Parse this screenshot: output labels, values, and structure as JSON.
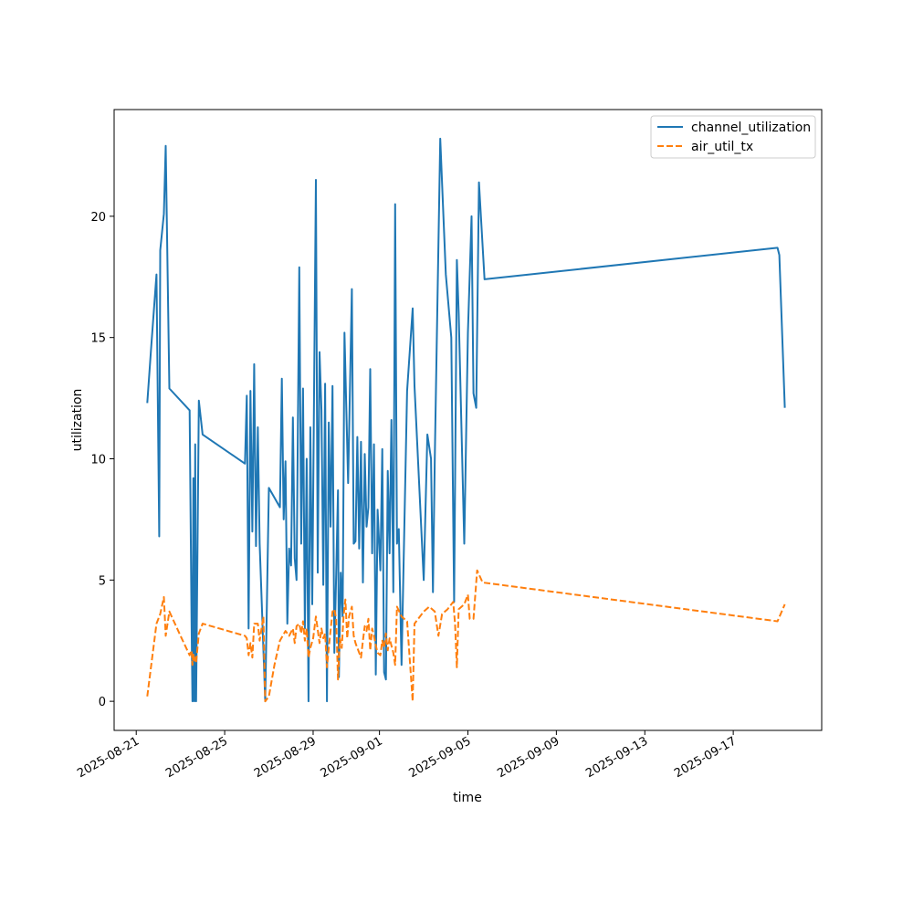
{
  "chart_data": {
    "type": "line",
    "xlabel": "time",
    "ylabel": "utilization",
    "x_axis_kind": "date",
    "xlim": [
      "2025-08-20",
      "2025-09-21"
    ],
    "ylim": [
      -1.2,
      24.4
    ],
    "x_ticks": [
      "2025-08-21",
      "2025-08-25",
      "2025-08-29",
      "2025-09-01",
      "2025-09-05",
      "2025-09-09",
      "2025-09-13",
      "2025-09-17"
    ],
    "y_ticks": [
      0,
      5,
      10,
      15,
      20
    ],
    "grid": false,
    "legend_position": "top-right",
    "series": [
      {
        "name": "channel_utilization",
        "color": "#1f77b4",
        "dash": "solid",
        "points": [
          [
            "2025-08-21T12:00",
            12.3
          ],
          [
            "2025-08-21T16:00",
            14.5
          ],
          [
            "2025-08-21T22:00",
            17.6
          ],
          [
            "2025-08-22T01:00",
            6.8
          ],
          [
            "2025-08-22T02:00",
            18.6
          ],
          [
            "2025-08-22T06:00",
            20.1
          ],
          [
            "2025-08-22T08:00",
            22.9
          ],
          [
            "2025-08-22T12:00",
            12.9
          ],
          [
            "2025-08-23T10:00",
            12.0
          ],
          [
            "2025-08-23T12:00",
            3.3
          ],
          [
            "2025-08-23T13:00",
            0.0
          ],
          [
            "2025-08-23T14:00",
            9.2
          ],
          [
            "2025-08-23T15:00",
            0.0
          ],
          [
            "2025-08-23T16:00",
            10.6
          ],
          [
            "2025-08-23T17:00",
            0.0
          ],
          [
            "2025-08-23T20:00",
            12.4
          ],
          [
            "2025-08-24T00:00",
            11.0
          ],
          [
            "2025-08-25T22:00",
            9.8
          ],
          [
            "2025-08-26T00:00",
            12.6
          ],
          [
            "2025-08-26T02:00",
            3.0
          ],
          [
            "2025-08-26T04:00",
            12.8
          ],
          [
            "2025-08-26T06:00",
            7.0
          ],
          [
            "2025-08-26T08:00",
            13.9
          ],
          [
            "2025-08-26T10:00",
            6.4
          ],
          [
            "2025-08-26T12:00",
            11.3
          ],
          [
            "2025-08-26T14:00",
            6.5
          ],
          [
            "2025-08-26T20:00",
            0.0
          ],
          [
            "2025-08-27T00:00",
            8.8
          ],
          [
            "2025-08-27T12:00",
            8.0
          ],
          [
            "2025-08-27T14:00",
            13.3
          ],
          [
            "2025-08-27T16:00",
            7.5
          ],
          [
            "2025-08-27T18:00",
            9.9
          ],
          [
            "2025-08-27T20:00",
            3.2
          ],
          [
            "2025-08-27T22:00",
            6.3
          ],
          [
            "2025-08-28T00:00",
            5.6
          ],
          [
            "2025-08-28T02:00",
            11.7
          ],
          [
            "2025-08-28T04:00",
            5.9
          ],
          [
            "2025-08-28T06:00",
            5.0
          ],
          [
            "2025-08-28T09:00",
            17.9
          ],
          [
            "2025-08-28T11:00",
            6.5
          ],
          [
            "2025-08-28T13:00",
            12.9
          ],
          [
            "2025-08-28T15:00",
            3.0
          ],
          [
            "2025-08-28T17:00",
            10.0
          ],
          [
            "2025-08-28T19:00",
            0.0
          ],
          [
            "2025-08-28T21:00",
            11.3
          ],
          [
            "2025-08-28T23:00",
            4.0
          ],
          [
            "2025-08-29T03:00",
            21.5
          ],
          [
            "2025-08-29T05:00",
            5.3
          ],
          [
            "2025-08-29T07:00",
            14.4
          ],
          [
            "2025-08-29T09:00",
            12.0
          ],
          [
            "2025-08-29T11:00",
            4.8
          ],
          [
            "2025-08-29T13:00",
            13.1
          ],
          [
            "2025-08-29T15:00",
            0.0
          ],
          [
            "2025-08-29T17:00",
            11.5
          ],
          [
            "2025-08-29T19:00",
            7.2
          ],
          [
            "2025-08-29T21:00",
            13.0
          ],
          [
            "2025-08-29T23:00",
            2.0
          ],
          [
            "2025-08-30T01:00",
            5.2
          ],
          [
            "2025-08-30T03:00",
            8.7
          ],
          [
            "2025-08-30T04:00",
            1.0
          ],
          [
            "2025-08-30T06:00",
            5.3
          ],
          [
            "2025-08-30T08:00",
            3.5
          ],
          [
            "2025-08-30T10:00",
            15.2
          ],
          [
            "2025-08-30T14:00",
            9.0
          ],
          [
            "2025-08-30T18:00",
            17.0
          ],
          [
            "2025-08-30T20:00",
            6.5
          ],
          [
            "2025-08-30T22:00",
            6.6
          ],
          [
            "2025-08-31T00:00",
            10.9
          ],
          [
            "2025-08-31T02:00",
            6.3
          ],
          [
            "2025-08-31T04:00",
            10.7
          ],
          [
            "2025-08-31T06:00",
            4.9
          ],
          [
            "2025-08-31T08:00",
            10.2
          ],
          [
            "2025-08-31T10:00",
            7.2
          ],
          [
            "2025-08-31T12:00",
            8.0
          ],
          [
            "2025-08-31T14:00",
            13.7
          ],
          [
            "2025-08-31T16:00",
            6.1
          ],
          [
            "2025-08-31T18:00",
            10.6
          ],
          [
            "2025-08-31T20:00",
            1.1
          ],
          [
            "2025-08-31T22:00",
            7.9
          ],
          [
            "2025-09-01T01:00",
            5.4
          ],
          [
            "2025-09-01T03:00",
            10.4
          ],
          [
            "2025-09-01T05:00",
            1.2
          ],
          [
            "2025-09-01T07:00",
            0.9
          ],
          [
            "2025-09-01T09:00",
            9.5
          ],
          [
            "2025-09-01T11:00",
            6.1
          ],
          [
            "2025-09-01T13:00",
            11.6
          ],
          [
            "2025-09-01T15:00",
            4.5
          ],
          [
            "2025-09-01T17:00",
            20.5
          ],
          [
            "2025-09-01T19:00",
            6.5
          ],
          [
            "2025-09-01T21:00",
            7.1
          ],
          [
            "2025-09-02T00:00",
            1.5
          ],
          [
            "2025-09-02T06:00",
            12.8
          ],
          [
            "2025-09-02T12:00",
            16.2
          ],
          [
            "2025-09-02T14:00",
            13.0
          ],
          [
            "2025-09-03T00:00",
            5.0
          ],
          [
            "2025-09-03T04:00",
            11.0
          ],
          [
            "2025-09-03T08:00",
            10.0
          ],
          [
            "2025-09-03T10:00",
            4.5
          ],
          [
            "2025-09-03T12:00",
            10.0
          ],
          [
            "2025-09-03T18:00",
            23.2
          ],
          [
            "2025-09-04T00:00",
            17.6
          ],
          [
            "2025-09-04T06:00",
            15.0
          ],
          [
            "2025-09-04T09:00",
            4.1
          ],
          [
            "2025-09-04T12:00",
            18.2
          ],
          [
            "2025-09-04T14:00",
            16.0
          ],
          [
            "2025-09-04T20:00",
            6.5
          ],
          [
            "2025-09-05T00:00",
            15.2
          ],
          [
            "2025-09-05T04:00",
            20.0
          ],
          [
            "2025-09-05T06:00",
            12.7
          ],
          [
            "2025-09-05T09:00",
            12.1
          ],
          [
            "2025-09-05T12:00",
            21.4
          ],
          [
            "2025-09-05T18:00",
            17.4
          ],
          [
            "2025-09-19T00:00",
            18.7
          ],
          [
            "2025-09-19T02:00",
            18.4
          ],
          [
            "2025-09-19T08:00",
            12.1
          ]
        ]
      },
      {
        "name": "air_util_tx",
        "color": "#ff7f0e",
        "dash": "dashed",
        "points": [
          [
            "2025-08-21T12:00",
            0.2
          ],
          [
            "2025-08-21T22:00",
            3.2
          ],
          [
            "2025-08-22T02:00",
            3.6
          ],
          [
            "2025-08-22T06:00",
            4.3
          ],
          [
            "2025-08-22T08:00",
            2.7
          ],
          [
            "2025-08-22T12:00",
            3.7
          ],
          [
            "2025-08-23T00:00",
            2.7
          ],
          [
            "2025-08-23T10:00",
            1.9
          ],
          [
            "2025-08-23T12:00",
            2.1
          ],
          [
            "2025-08-23T13:00",
            1.5
          ],
          [
            "2025-08-23T14:00",
            2.0
          ],
          [
            "2025-08-23T15:00",
            1.6
          ],
          [
            "2025-08-23T16:00",
            1.8
          ],
          [
            "2025-08-23T17:00",
            1.6
          ],
          [
            "2025-08-23T20:00",
            2.8
          ],
          [
            "2025-08-24T00:00",
            3.2
          ],
          [
            "2025-08-25T22:00",
            2.7
          ],
          [
            "2025-08-26T00:00",
            2.6
          ],
          [
            "2025-08-26T02:00",
            1.9
          ],
          [
            "2025-08-26T04:00",
            2.4
          ],
          [
            "2025-08-26T06:00",
            1.8
          ],
          [
            "2025-08-26T08:00",
            3.2
          ],
          [
            "2025-08-26T12:00",
            3.2
          ],
          [
            "2025-08-26T14:00",
            2.5
          ],
          [
            "2025-08-26T18:00",
            3.5
          ],
          [
            "2025-08-26T20:00",
            0.0
          ],
          [
            "2025-08-27T00:00",
            0.2
          ],
          [
            "2025-08-27T06:00",
            1.5
          ],
          [
            "2025-08-27T12:00",
            2.5
          ],
          [
            "2025-08-27T18:00",
            2.9
          ],
          [
            "2025-08-27T22:00",
            2.7
          ],
          [
            "2025-08-28T02:00",
            3.0
          ],
          [
            "2025-08-28T04:00",
            2.4
          ],
          [
            "2025-08-28T06:00",
            3.1
          ],
          [
            "2025-08-28T09:00",
            3.2
          ],
          [
            "2025-08-28T11:00",
            2.8
          ],
          [
            "2025-08-28T13:00",
            3.3
          ],
          [
            "2025-08-28T15:00",
            2.5
          ],
          [
            "2025-08-28T17:00",
            3.0
          ],
          [
            "2025-08-28T19:00",
            1.8
          ],
          [
            "2025-08-28T21:00",
            2.2
          ],
          [
            "2025-08-29T00:00",
            2.6
          ],
          [
            "2025-08-29T03:00",
            3.5
          ],
          [
            "2025-08-29T07:00",
            2.4
          ],
          [
            "2025-08-29T09:00",
            3.0
          ],
          [
            "2025-08-29T11:00",
            2.6
          ],
          [
            "2025-08-29T13:00",
            2.8
          ],
          [
            "2025-08-29T15:00",
            1.4
          ],
          [
            "2025-08-29T17:00",
            2.2
          ],
          [
            "2025-08-29T21:00",
            3.7
          ],
          [
            "2025-08-29T23:00",
            3.8
          ],
          [
            "2025-08-30T01:00",
            3.4
          ],
          [
            "2025-08-30T03:00",
            0.9
          ],
          [
            "2025-08-30T05:00",
            2.6
          ],
          [
            "2025-08-30T07:00",
            2.2
          ],
          [
            "2025-08-30T09:00",
            3.5
          ],
          [
            "2025-08-30T11:00",
            4.2
          ],
          [
            "2025-08-30T13:00",
            2.6
          ],
          [
            "2025-08-30T15:00",
            3.5
          ],
          [
            "2025-08-30T18:00",
            3.9
          ],
          [
            "2025-08-30T20:00",
            2.7
          ],
          [
            "2025-08-30T22:00",
            2.4
          ],
          [
            "2025-08-31T00:00",
            2.2
          ],
          [
            "2025-08-31T04:00",
            1.8
          ],
          [
            "2025-08-31T06:00",
            2.5
          ],
          [
            "2025-08-31T08:00",
            3.1
          ],
          [
            "2025-08-31T10:00",
            2.9
          ],
          [
            "2025-08-31T12:00",
            3.4
          ],
          [
            "2025-08-31T14:00",
            2.1
          ],
          [
            "2025-08-31T16:00",
            3.0
          ],
          [
            "2025-08-31T18:00",
            2.7
          ],
          [
            "2025-08-31T20:00",
            2.3
          ],
          [
            "2025-08-31T22:00",
            2.0
          ],
          [
            "2025-09-01T01:00",
            1.9
          ],
          [
            "2025-09-01T03:00",
            2.5
          ],
          [
            "2025-09-01T05:00",
            2.2
          ],
          [
            "2025-09-01T07:00",
            2.8
          ],
          [
            "2025-09-01T09:00",
            2.1
          ],
          [
            "2025-09-01T11:00",
            2.6
          ],
          [
            "2025-09-01T13:00",
            2.3
          ],
          [
            "2025-09-01T15:00",
            2.0
          ],
          [
            "2025-09-01T17:00",
            1.5
          ],
          [
            "2025-09-01T19:00",
            3.9
          ],
          [
            "2025-09-02T00:00",
            3.5
          ],
          [
            "2025-09-02T06:00",
            3.3
          ],
          [
            "2025-09-02T12:00",
            0.0
          ],
          [
            "2025-09-02T14:00",
            3.2
          ],
          [
            "2025-09-03T00:00",
            3.7
          ],
          [
            "2025-09-03T06:00",
            3.9
          ],
          [
            "2025-09-03T12:00",
            3.7
          ],
          [
            "2025-09-03T16:00",
            2.7
          ],
          [
            "2025-09-03T20:00",
            3.6
          ],
          [
            "2025-09-04T02:00",
            3.8
          ],
          [
            "2025-09-04T08:00",
            4.1
          ],
          [
            "2025-09-04T10:00",
            3.2
          ],
          [
            "2025-09-04T12:00",
            1.4
          ],
          [
            "2025-09-04T14:00",
            3.8
          ],
          [
            "2025-09-04T20:00",
            4.0
          ],
          [
            "2025-09-05T00:00",
            4.4
          ],
          [
            "2025-09-05T02:00",
            3.4
          ],
          [
            "2025-09-05T06:00",
            3.4
          ],
          [
            "2025-09-05T10:00",
            5.4
          ],
          [
            "2025-09-05T16:00",
            4.9
          ],
          [
            "2025-09-19T00:00",
            3.3
          ],
          [
            "2025-09-19T08:00",
            4.0
          ]
        ]
      }
    ]
  }
}
